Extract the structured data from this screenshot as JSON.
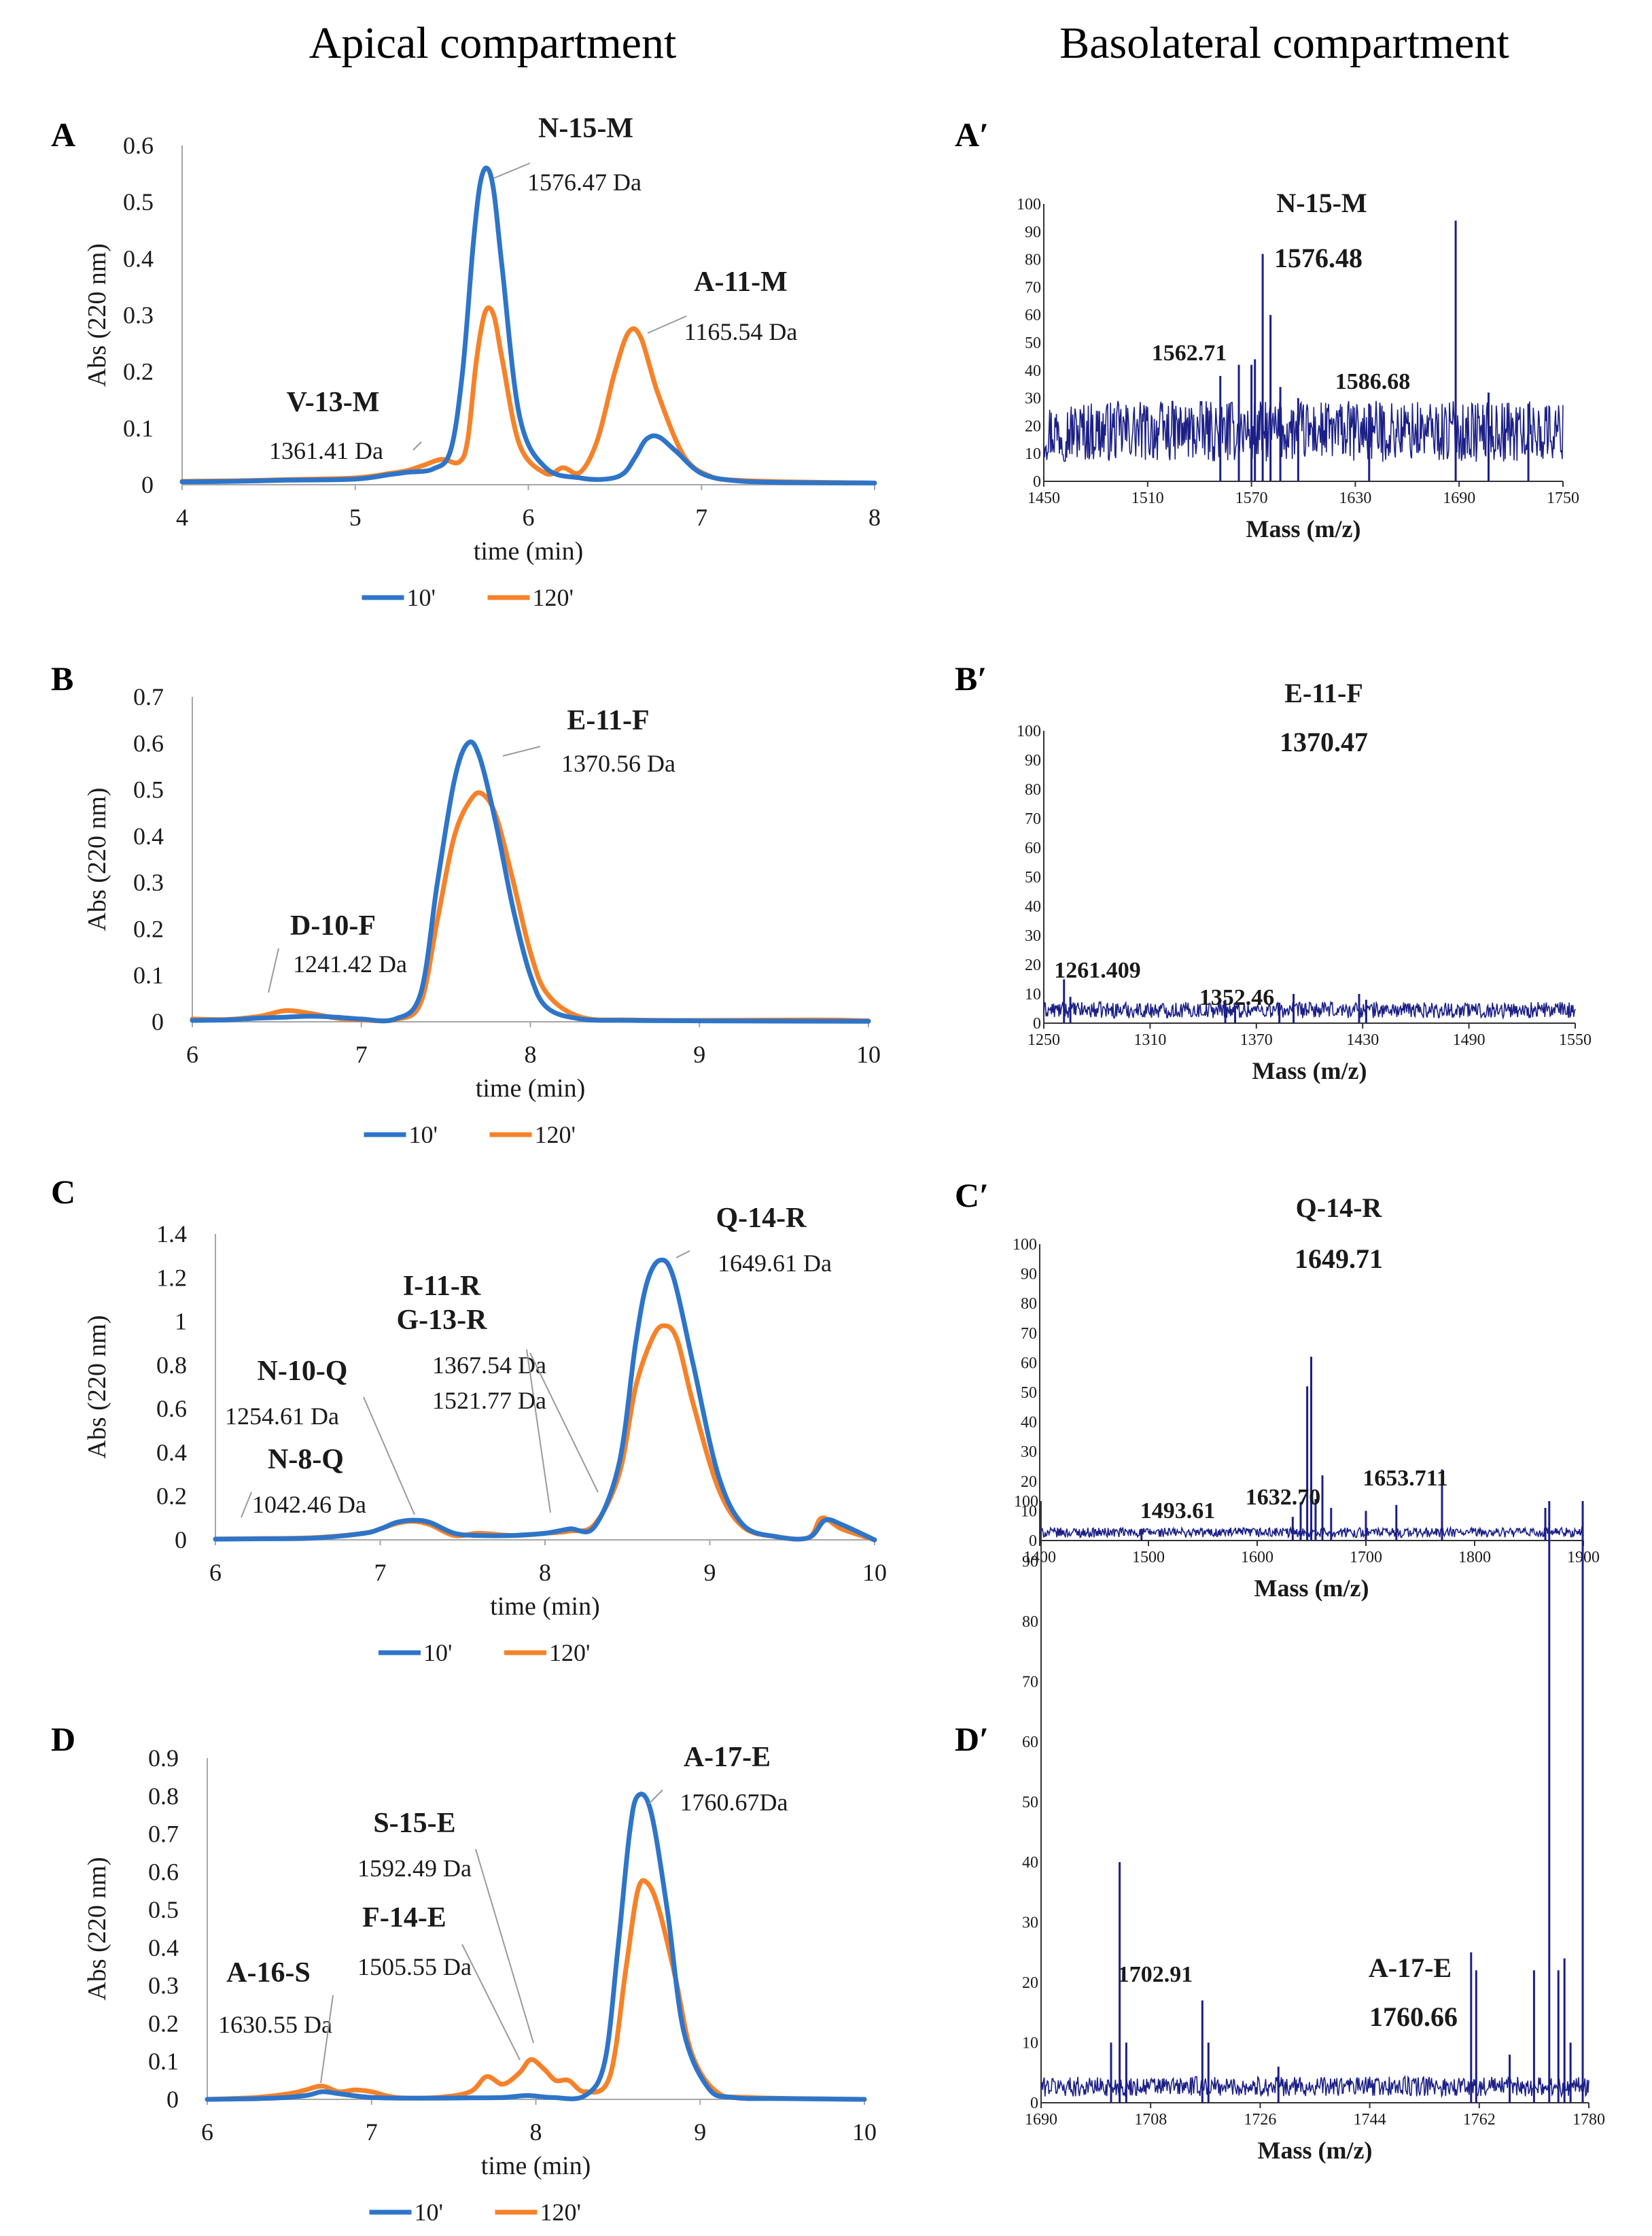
{
  "headers": {
    "apical": "Apical compartment",
    "basolateral": "Basolateral compartment"
  },
  "colors": {
    "series_10": "#2e75c9",
    "series_120": "#f5822a",
    "spectrum": "#1b1f86",
    "axis": "#a6a6a6",
    "text": "#1a1a1a"
  },
  "chart_data": [
    {
      "panel": "A",
      "type": "line",
      "title": "",
      "xlabel": "time (min)",
      "ylabel": "Abs (220 nm)",
      "xlim": [
        4,
        8
      ],
      "ylim": [
        0,
        0.6
      ],
      "xticks": [
        "4",
        "5",
        "6",
        "7",
        "8"
      ],
      "yticks": [
        "0",
        "0.1",
        "0.2",
        "0.3",
        "0.4",
        "0.5",
        "0.6"
      ],
      "legend": [
        "10'",
        "120'"
      ],
      "legend_position": "bottom",
      "series": [
        {
          "name": "10'",
          "x": [
            4.0,
            4.3,
            4.6,
            5.0,
            5.2,
            5.3,
            5.45,
            5.55,
            5.62,
            5.68,
            5.72,
            5.76,
            5.8,
            5.85,
            5.95,
            6.1,
            6.3,
            6.45,
            6.55,
            6.62,
            6.68,
            6.75,
            6.85,
            7.0,
            7.2,
            7.5,
            8.0
          ],
          "y": [
            0.005,
            0.006,
            0.008,
            0.01,
            0.018,
            0.022,
            0.028,
            0.06,
            0.2,
            0.42,
            0.53,
            0.56,
            0.52,
            0.38,
            0.12,
            0.03,
            0.012,
            0.01,
            0.02,
            0.05,
            0.08,
            0.085,
            0.06,
            0.02,
            0.007,
            0.004,
            0.003
          ]
        },
        {
          "name": "120'",
          "x": [
            4.0,
            4.3,
            4.6,
            5.0,
            5.2,
            5.3,
            5.4,
            5.5,
            5.6,
            5.65,
            5.7,
            5.75,
            5.8,
            5.85,
            5.95,
            6.1,
            6.2,
            6.3,
            6.4,
            6.5,
            6.58,
            6.65,
            6.75,
            6.9,
            7.05,
            7.2,
            7.5,
            8.0
          ],
          "y": [
            0.006,
            0.007,
            0.009,
            0.012,
            0.02,
            0.025,
            0.035,
            0.045,
            0.04,
            0.08,
            0.22,
            0.305,
            0.3,
            0.22,
            0.07,
            0.02,
            0.03,
            0.022,
            0.08,
            0.2,
            0.27,
            0.26,
            0.16,
            0.05,
            0.015,
            0.008,
            0.005,
            0.003
          ]
        }
      ],
      "annotations": [
        {
          "label": "N-15-M",
          "mass": "1576.47 Da"
        },
        {
          "label": "A-11-M",
          "mass": "1165.54 Da"
        },
        {
          "label": "V-13-M",
          "mass": "1361.41 Da"
        }
      ]
    },
    {
      "panel": "A′",
      "type": "line",
      "title": "",
      "xlabel": "Mass (m/z)",
      "ylabel": "",
      "xlim": [
        1450,
        1750
      ],
      "ylim": [
        0,
        100
      ],
      "xticks": [
        "1450",
        "1510",
        "1570",
        "1630",
        "1690",
        "1750"
      ],
      "yticks": [
        "0",
        "10",
        "20",
        "30",
        "40",
        "50",
        "60",
        "70",
        "80",
        "90",
        "100"
      ],
      "baseline": 20,
      "peaks": [
        [
          1552,
          38
        ],
        [
          1562.71,
          42
        ],
        [
          1570,
          42
        ],
        [
          1572,
          44
        ],
        [
          1576.48,
          82
        ],
        [
          1581,
          60
        ],
        [
          1586.68,
          34
        ],
        [
          1597,
          30
        ],
        [
          1638,
          28
        ],
        [
          1688,
          94
        ],
        [
          1707,
          32
        ],
        [
          1730,
          28
        ]
      ],
      "annotations": [
        {
          "label": "N-15-M"
        },
        {
          "label": "1576.48"
        },
        {
          "label": "1562.71"
        },
        {
          "label": "1586.68"
        }
      ]
    },
    {
      "panel": "B",
      "type": "line",
      "title": "",
      "xlabel": "time (min)",
      "ylabel": "Abs (220 nm)",
      "xlim": [
        6,
        10
      ],
      "ylim": [
        0,
        0.7
      ],
      "xticks": [
        "6",
        "7",
        "8",
        "9",
        "10"
      ],
      "yticks": [
        "0",
        "0.1",
        "0.2",
        "0.3",
        "0.4",
        "0.5",
        "0.6",
        "0.7"
      ],
      "legend": [
        "10'",
        "120'"
      ],
      "legend_position": "bottom",
      "series": [
        {
          "name": "10'",
          "x": [
            6.0,
            6.2,
            6.4,
            6.55,
            6.7,
            6.85,
            7.0,
            7.2,
            7.35,
            7.45,
            7.55,
            7.63,
            7.7,
            7.8,
            7.9,
            8.0,
            8.1,
            8.3,
            8.6,
            9.0,
            10.0
          ],
          "y": [
            0.003,
            0.004,
            0.008,
            0.01,
            0.012,
            0.01,
            0.006,
            0.006,
            0.06,
            0.3,
            0.52,
            0.6,
            0.57,
            0.42,
            0.24,
            0.1,
            0.03,
            0.006,
            0.003,
            0.002,
            0.001
          ]
        },
        {
          "name": "120'",
          "x": [
            6.0,
            6.2,
            6.4,
            6.55,
            6.7,
            6.85,
            7.0,
            7.2,
            7.35,
            7.45,
            7.55,
            7.65,
            7.72,
            7.8,
            7.9,
            8.0,
            8.1,
            8.3,
            8.6,
            9.0,
            9.7,
            10.0
          ],
          "y": [
            0.006,
            0.005,
            0.012,
            0.024,
            0.018,
            0.008,
            0.004,
            0.005,
            0.04,
            0.22,
            0.4,
            0.48,
            0.49,
            0.44,
            0.3,
            0.15,
            0.06,
            0.01,
            0.004,
            0.003,
            0.004,
            0.002
          ]
        }
      ],
      "annotations": [
        {
          "label": "E-11-F",
          "mass": "1370.56 Da"
        },
        {
          "label": "D-10-F",
          "mass": "1241.42 Da"
        }
      ]
    },
    {
      "panel": "B′",
      "type": "line",
      "title": "",
      "xlabel": "Mass (m/z)",
      "ylabel": "",
      "xlim": [
        1250,
        1550
      ],
      "ylim": [
        0,
        100
      ],
      "xticks": [
        "1250",
        "1310",
        "1370",
        "1430",
        "1490",
        "1550"
      ],
      "yticks": [
        "0",
        "10",
        "20",
        "30",
        "40",
        "50",
        "60",
        "70",
        "80",
        "90",
        "100"
      ],
      "baseline": 5,
      "peaks": [
        [
          1261.409,
          15
        ],
        [
          1265,
          9
        ],
        [
          1352.46,
          8
        ],
        [
          1358,
          6
        ],
        [
          1383,
          7
        ],
        [
          1391,
          10
        ],
        [
          1428,
          10
        ],
        [
          1432,
          8
        ]
      ],
      "annotations": [
        {
          "label": "E-11-F"
        },
        {
          "label": "1370.47"
        },
        {
          "label": "1261.409"
        },
        {
          "label": "1352.46"
        }
      ]
    },
    {
      "panel": "C",
      "type": "line",
      "title": "",
      "xlabel": "time (min)",
      "ylabel": "Abs (220 nm)",
      "xlim": [
        6,
        10
      ],
      "ylim": [
        0,
        1.4
      ],
      "xticks": [
        "6",
        "7",
        "8",
        "9",
        "10"
      ],
      "yticks": [
        "0",
        "0.2",
        "0.4",
        "0.6",
        "0.8",
        "1",
        "1.2",
        "1.4"
      ],
      "legend": [
        "10'",
        "120'"
      ],
      "legend_position": "bottom",
      "series": [
        {
          "name": "10'",
          "x": [
            6.0,
            6.3,
            6.6,
            6.9,
            7.0,
            7.1,
            7.2,
            7.3,
            7.45,
            7.6,
            7.8,
            8.0,
            8.15,
            8.3,
            8.45,
            8.55,
            8.62,
            8.7,
            8.78,
            8.9,
            9.05,
            9.2,
            9.4,
            9.6,
            9.7,
            9.8,
            10.0
          ],
          "y": [
            0.003,
            0.005,
            0.008,
            0.03,
            0.05,
            0.08,
            0.09,
            0.08,
            0.03,
            0.02,
            0.02,
            0.03,
            0.05,
            0.06,
            0.35,
            0.9,
            1.18,
            1.28,
            1.2,
            0.8,
            0.3,
            0.07,
            0.015,
            0.01,
            0.09,
            0.07,
            0.0
          ]
        },
        {
          "name": "120'",
          "x": [
            6.0,
            6.3,
            6.6,
            6.9,
            7.0,
            7.1,
            7.2,
            7.3,
            7.45,
            7.6,
            7.8,
            8.0,
            8.15,
            8.3,
            8.45,
            8.55,
            8.65,
            8.72,
            8.8,
            8.9,
            9.05,
            9.2,
            9.4,
            9.6,
            9.68,
            9.8,
            10.0
          ],
          "y": [
            0.004,
            0.006,
            0.01,
            0.03,
            0.05,
            0.075,
            0.085,
            0.07,
            0.02,
            0.03,
            0.02,
            0.03,
            0.04,
            0.07,
            0.3,
            0.7,
            0.92,
            0.98,
            0.92,
            0.62,
            0.24,
            0.06,
            0.015,
            0.01,
            0.1,
            0.05,
            0.0
          ]
        }
      ],
      "annotations": [
        {
          "label": "Q-14-R",
          "mass": "1649.61 Da"
        },
        {
          "label": "I-11-R",
          "mass": "1367.54 Da"
        },
        {
          "label": "G-13-R",
          "mass": "1521.77 Da"
        },
        {
          "label": "N-10-Q",
          "mass": "1254.61 Da"
        },
        {
          "label": "N-8-Q",
          "mass": "1042.46 Da"
        }
      ]
    },
    {
      "panel": "C′",
      "type": "line",
      "title": "",
      "xlabel": "Mass (m/z)",
      "ylabel": "",
      "xlim": [
        1400,
        1900
      ],
      "ylim": [
        0,
        100
      ],
      "xticks": [
        "1400",
        "1500",
        "1600",
        "1700",
        "1800",
        "1900"
      ],
      "yticks": [
        "0",
        "10",
        "20",
        "30",
        "40",
        "50",
        "60",
        "70",
        "80",
        "90",
        "100"
      ],
      "baseline": 3,
      "peaks": [
        [
          1493.61,
          4
        ],
        [
          1632.7,
          8
        ],
        [
          1640,
          13
        ],
        [
          1646,
          52
        ],
        [
          1649.71,
          62
        ],
        [
          1653.711,
          14
        ],
        [
          1660,
          22
        ],
        [
          1668,
          11
        ],
        [
          1700,
          10
        ],
        [
          1728,
          12
        ],
        [
          1770,
          24
        ],
        [
          1865,
          11
        ]
      ],
      "annotations": [
        {
          "label": "Q-14-R"
        },
        {
          "label": "1649.71"
        },
        {
          "label": "1653.711"
        },
        {
          "label": "1632.70"
        },
        {
          "label": "1493.61"
        }
      ]
    },
    {
      "panel": "D",
      "type": "line",
      "title": "",
      "xlabel": "time (min)",
      "ylabel": "Abs (220 nm)",
      "xlim": [
        6,
        10
      ],
      "ylim": [
        0,
        0.9
      ],
      "xticks": [
        "6",
        "7",
        "8",
        "9",
        "10"
      ],
      "yticks": [
        "0",
        "0.1",
        "0.2",
        "0.3",
        "0.4",
        "0.5",
        "0.6",
        "0.7",
        "0.8",
        "0.9"
      ],
      "legend": [
        "10'",
        "120'"
      ],
      "legend_position": "bottom",
      "series": [
        {
          "name": "10'",
          "x": [
            6.0,
            6.4,
            6.6,
            6.7,
            6.8,
            7.0,
            7.3,
            7.6,
            7.8,
            7.95,
            8.1,
            8.3,
            8.42,
            8.5,
            8.57,
            8.62,
            8.7,
            8.8,
            8.9,
            9.05,
            9.2,
            9.5,
            10.0
          ],
          "y": [
            0.0,
            0.003,
            0.01,
            0.02,
            0.015,
            0.005,
            0.003,
            0.004,
            0.005,
            0.01,
            0.005,
            0.01,
            0.1,
            0.4,
            0.7,
            0.8,
            0.76,
            0.5,
            0.18,
            0.03,
            0.005,
            0.002,
            0.0
          ]
        },
        {
          "name": "120'",
          "x": [
            6.0,
            6.3,
            6.5,
            6.6,
            6.7,
            6.8,
            6.9,
            7.0,
            7.15,
            7.4,
            7.6,
            7.7,
            7.8,
            7.9,
            7.97,
            8.05,
            8.12,
            8.2,
            8.3,
            8.45,
            8.55,
            8.62,
            8.68,
            8.75,
            8.85,
            8.95,
            9.1,
            9.3,
            10.0
          ],
          "y": [
            0.0,
            0.005,
            0.015,
            0.025,
            0.035,
            0.02,
            0.025,
            0.02,
            0.005,
            0.005,
            0.02,
            0.06,
            0.04,
            0.07,
            0.105,
            0.08,
            0.05,
            0.05,
            0.02,
            0.06,
            0.35,
            0.55,
            0.57,
            0.5,
            0.32,
            0.12,
            0.02,
            0.005,
            0.0
          ]
        }
      ],
      "annotations": [
        {
          "label": "A-17-E",
          "mass": "1760.67Da"
        },
        {
          "label": "S-15-E",
          "mass": "1592.49 Da"
        },
        {
          "label": "F-14-E",
          "mass": "1505.55 Da"
        },
        {
          "label": "A-16-S",
          "mass": "1630.55 Da"
        }
      ]
    },
    {
      "panel": "D′",
      "type": "line",
      "title": "",
      "xlabel": "Mass (m/z)",
      "ylabel": "",
      "xlim": [
        1690,
        1780
      ],
      "ylim": [
        0,
        100
      ],
      "xticks": [
        "1690",
        "1708",
        "1726",
        "1744",
        "1762",
        "1780"
      ],
      "yticks": [
        "0",
        "10",
        "20",
        "30",
        "40",
        "50",
        "60",
        "70",
        "80",
        "90",
        "100"
      ],
      "baseline": 3,
      "peaks": [
        [
          1701.5,
          10
        ],
        [
          1702.91,
          40
        ],
        [
          1704,
          10
        ],
        [
          1716.5,
          17
        ],
        [
          1717.5,
          10
        ],
        [
          1729,
          6
        ],
        [
          1760.66,
          25
        ],
        [
          1761.5,
          22
        ],
        [
          1767,
          8
        ],
        [
          1771,
          22
        ],
        [
          1773.5,
          100
        ],
        [
          1775,
          22
        ],
        [
          1776,
          24
        ],
        [
          1777,
          10
        ],
        [
          1779,
          100
        ]
      ],
      "annotations": [
        {
          "label": "A-17-E"
        },
        {
          "label": "1760.66"
        },
        {
          "label": "1702.91"
        }
      ]
    }
  ]
}
